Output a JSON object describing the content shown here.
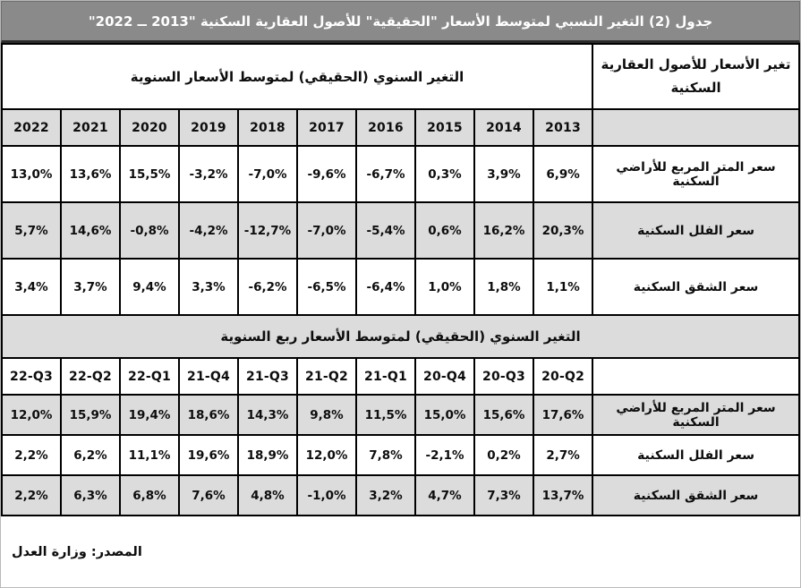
{
  "title": "جدول (2) التغير النسبي لمتوسط الأسعار \"الحقيقية\" للأصول العقارية السكنية \"2013 ــ 2022\"",
  "colors": {
    "title_bar_bg": "#8a8a8a",
    "title_text": "#ffffff",
    "shaded_row_bg": "#dcdcdc",
    "grid_border": "#000000"
  },
  "annual_section": {
    "header": "التغير السنوي (الحقيقي) لمتوسط الأسعار السنوية",
    "corner_header": "تغير الأسعار للأصول العقارية السكنية",
    "columns": [
      "2022",
      "2021",
      "2020",
      "2019",
      "2018",
      "2017",
      "2016",
      "2015",
      "2014",
      "2013"
    ],
    "rows": [
      {
        "label": "سعر المتر المربع للأراضي السكنية",
        "values": [
          "13,0%",
          "13,6%",
          "15,5%",
          "-3,2%",
          "-7,0%",
          "-9,6%",
          "-6,7%",
          "0,3%",
          "3,9%",
          "6,9%"
        ],
        "shaded": false
      },
      {
        "label": "سعر الفلل السكنية",
        "values": [
          "5,7%",
          "14,6%",
          "-0,8%",
          "-4,2%",
          "-12,7%",
          "-7,0%",
          "-5,4%",
          "0,6%",
          "16,2%",
          "20,3%"
        ],
        "shaded": true
      },
      {
        "label": "سعر الشقق السكنية",
        "values": [
          "3,4%",
          "3,7%",
          "9,4%",
          "3,3%",
          "-6,2%",
          "-6,5%",
          "-6,4%",
          "1,0%",
          "1,8%",
          "1,1%"
        ],
        "shaded": false
      }
    ]
  },
  "quarterly_section": {
    "header": "التغير السنوي (الحقيقي) لمتوسط الأسعار ربع السنوية",
    "columns": [
      "22-Q3",
      "22-Q2",
      "22-Q1",
      "21-Q4",
      "21-Q3",
      "21-Q2",
      "21-Q1",
      "20-Q4",
      "20-Q3",
      "20-Q2"
    ],
    "rows": [
      {
        "label": "سعر المتر المربع للأراضي السكنية",
        "values": [
          "12,0%",
          "15,9%",
          "19,4%",
          "18,6%",
          "14,3%",
          "9,8%",
          "11,5%",
          "15,0%",
          "15,6%",
          "17,6%"
        ],
        "shaded": true
      },
      {
        "label": "سعر الفلل السكنية",
        "values": [
          "2,2%",
          "6,2%",
          "11,1%",
          "19,6%",
          "18,9%",
          "12,0%",
          "7,8%",
          "-2,1%",
          "0,2%",
          "2,7%"
        ],
        "shaded": false
      },
      {
        "label": "سعر الشقق السكنية",
        "values": [
          "2,2%",
          "6,3%",
          "6,8%",
          "7,6%",
          "4,8%",
          "-1,0%",
          "3,2%",
          "4,7%",
          "7,3%",
          "13,7%"
        ],
        "shaded": true
      }
    ]
  },
  "footer": "المصدر: وزارة العدل"
}
